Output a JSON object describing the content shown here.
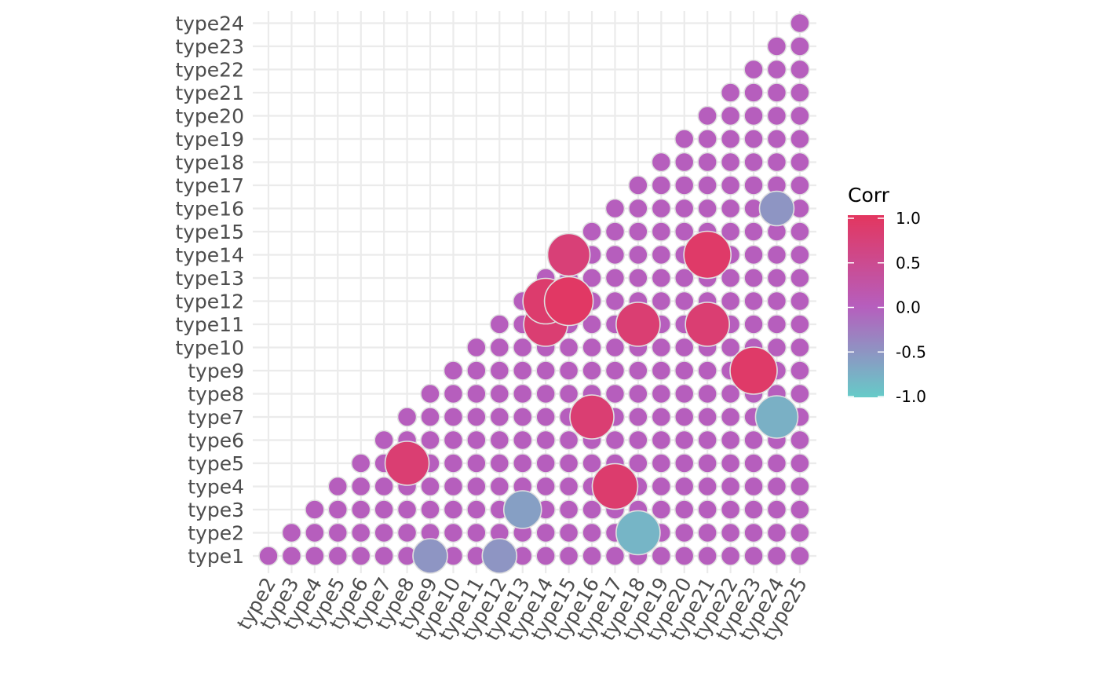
{
  "chart_data": {
    "type": "scatter",
    "subtype": "correlation-bubble-matrix (lower triangle)",
    "x_categories": [
      "type2",
      "type3",
      "type4",
      "type5",
      "type6",
      "type7",
      "type8",
      "type9",
      "type10",
      "type11",
      "type12",
      "type13",
      "type14",
      "type15",
      "type16",
      "type17",
      "type18",
      "type19",
      "type20",
      "type21",
      "type22",
      "type23",
      "type24",
      "type25"
    ],
    "y_categories": [
      "type1",
      "type2",
      "type3",
      "type4",
      "type5",
      "type6",
      "type7",
      "type8",
      "type9",
      "type10",
      "type11",
      "type12",
      "type13",
      "type14",
      "type15",
      "type16",
      "type17",
      "type18",
      "type19",
      "type20",
      "type21",
      "type22",
      "type23",
      "type24"
    ],
    "default_corr": 0.0,
    "cells_note": "Every pair (row typeA, column typeB) with A < B is shown; unlisted pairs have Corr ≈ 0.",
    "notable_correlations": [
      {
        "row": "type1",
        "col": "type9",
        "corr": -0.5
      },
      {
        "row": "type1",
        "col": "type12",
        "corr": -0.5
      },
      {
        "row": "type2",
        "col": "type18",
        "corr": -0.8
      },
      {
        "row": "type3",
        "col": "type13",
        "corr": -0.6
      },
      {
        "row": "type4",
        "col": "type17",
        "corr": 0.85
      },
      {
        "row": "type5",
        "col": "type8",
        "corr": 0.8
      },
      {
        "row": "type7",
        "col": "type16",
        "corr": 0.8
      },
      {
        "row": "type7",
        "col": "type24",
        "corr": -0.75
      },
      {
        "row": "type9",
        "col": "type23",
        "corr": 0.9
      },
      {
        "row": "type11",
        "col": "type14",
        "corr": 0.8
      },
      {
        "row": "type11",
        "col": "type18",
        "corr": 0.8
      },
      {
        "row": "type11",
        "col": "type21",
        "corr": 0.8
      },
      {
        "row": "type12",
        "col": "type14",
        "corr": 0.85
      },
      {
        "row": "type12",
        "col": "type15",
        "corr": 0.95
      },
      {
        "row": "type14",
        "col": "type15",
        "corr": 0.75
      },
      {
        "row": "type14",
        "col": "type21",
        "corr": 0.9
      },
      {
        "row": "type16",
        "col": "type24",
        "corr": -0.5
      }
    ],
    "legend": {
      "title": "Corr",
      "ticks": [
        1.0,
        0.5,
        0.0,
        -0.5,
        -1.0
      ],
      "tick_labels": [
        "1.0",
        "0.5",
        "0.0",
        "-0.5",
        "-1.0"
      ],
      "range": [
        -1.0,
        1.0
      ],
      "placement": "right"
    },
    "colors": {
      "high": "#e3365f",
      "mid": "#b65ebd",
      "low": "#66cbc8",
      "point_border": "#e0e0e0",
      "grid": "#ebebeb"
    },
    "grid": true,
    "title": "",
    "xlabel": "",
    "ylabel": ""
  }
}
